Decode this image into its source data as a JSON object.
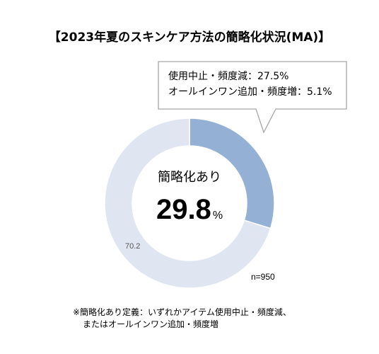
{
  "chart_data": {
    "type": "donut",
    "title": "【2023年夏のスキンケア方法の簡略化状況(MA)】",
    "slices": [
      {
        "label": "29.8",
        "value": 29.8,
        "color": "#94b0d4"
      },
      {
        "label": "70.2",
        "value": 70.2,
        "color": "#dfe6f1"
      }
    ],
    "center_caption": "簡略化あり",
    "center_value": "29.8",
    "center_unit": "%",
    "callout_lines": [
      "使用中止・頻度減：27.5%",
      "オールインワン追加・頻度増：5.1%"
    ],
    "sample_size": "n=950",
    "footnote_lines": [
      "※簡略化あり定義：いずれかアイテム使用中止・頻度減、",
      "またはオールインワン追加・頻度増"
    ]
  }
}
